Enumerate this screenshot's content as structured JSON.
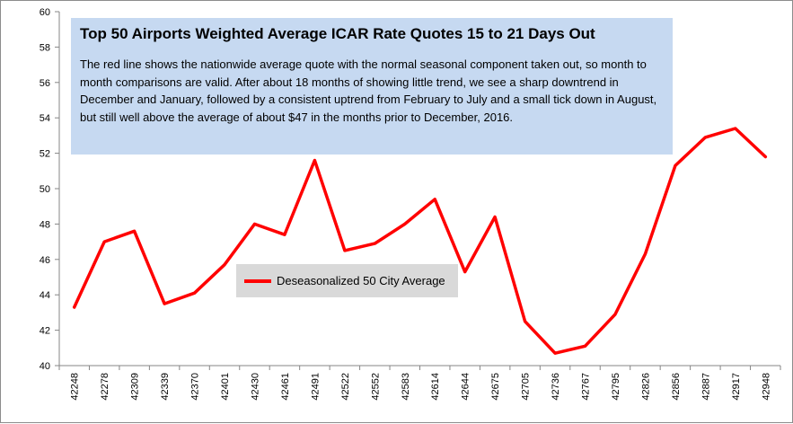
{
  "chart_data": {
    "type": "line",
    "title": "Top 50 Airports Weighted Average ICAR Rate Quotes 15 to 21 Days Out",
    "annotation": "The red line shows the nationwide average quote with the normal seasonal component taken out, so month to month comparisons are valid. After about 18 months of showing little trend, we see a sharp downtrend in December and January, followed by a consistent uptrend from February to July and a small tick down in August, but still well above the average of about $47 in the months prior to December, 2016.",
    "xlabel": "",
    "ylabel": "",
    "categories": [
      "42248",
      "42278",
      "42309",
      "42339",
      "42370",
      "42401",
      "42430",
      "42461",
      "42491",
      "42522",
      "42552",
      "42583",
      "42614",
      "42644",
      "42675",
      "42705",
      "42736",
      "42767",
      "42795",
      "42826",
      "42856",
      "42887",
      "42917",
      "42948"
    ],
    "series": [
      {
        "name": "Deseasonalized 50 City Average",
        "color": "#ff0000",
        "values": [
          43.3,
          47.0,
          47.6,
          43.5,
          44.1,
          45.7,
          48.0,
          47.4,
          51.6,
          46.5,
          46.9,
          48.0,
          49.4,
          45.3,
          48.4,
          42.5,
          40.7,
          41.1,
          42.9,
          46.3,
          51.3,
          52.9,
          53.4,
          51.8
        ]
      }
    ],
    "ylim": [
      40,
      60
    ],
    "yticks": [
      "40",
      "42",
      "44",
      "46",
      "48",
      "50",
      "52",
      "54",
      "56",
      "58",
      "60"
    ],
    "grid": false,
    "legend_position": "center-left"
  }
}
